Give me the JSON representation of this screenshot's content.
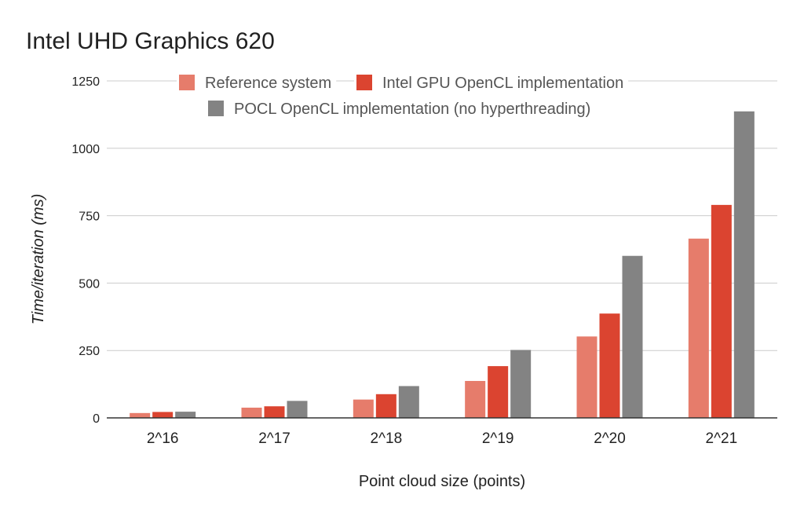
{
  "chart_data": {
    "type": "bar",
    "title": "Intel UHD Graphics 620",
    "xlabel": "Point cloud size (points)",
    "ylabel": "Time/iteration (ms)",
    "categories": [
      "2^16",
      "2^17",
      "2^18",
      "2^19",
      "2^20",
      "2^21"
    ],
    "series": [
      {
        "name": "Reference system",
        "color": "#e67c6b",
        "values": [
          18,
          38,
          68,
          137,
          302,
          665
        ]
      },
      {
        "name": "Intel GPU OpenCL implementation",
        "color": "#db4430",
        "values": [
          22,
          43,
          88,
          192,
          387,
          790
        ]
      },
      {
        "name": "POCL OpenCL implementation (no hyperthreading)",
        "color": "#838383",
        "values": [
          23,
          63,
          118,
          252,
          601,
          1137
        ]
      }
    ],
    "ylim": [
      0,
      1250
    ],
    "yticks": [
      0,
      250,
      500,
      750,
      1000,
      1250
    ],
    "grid": true,
    "legend_position": "top"
  }
}
